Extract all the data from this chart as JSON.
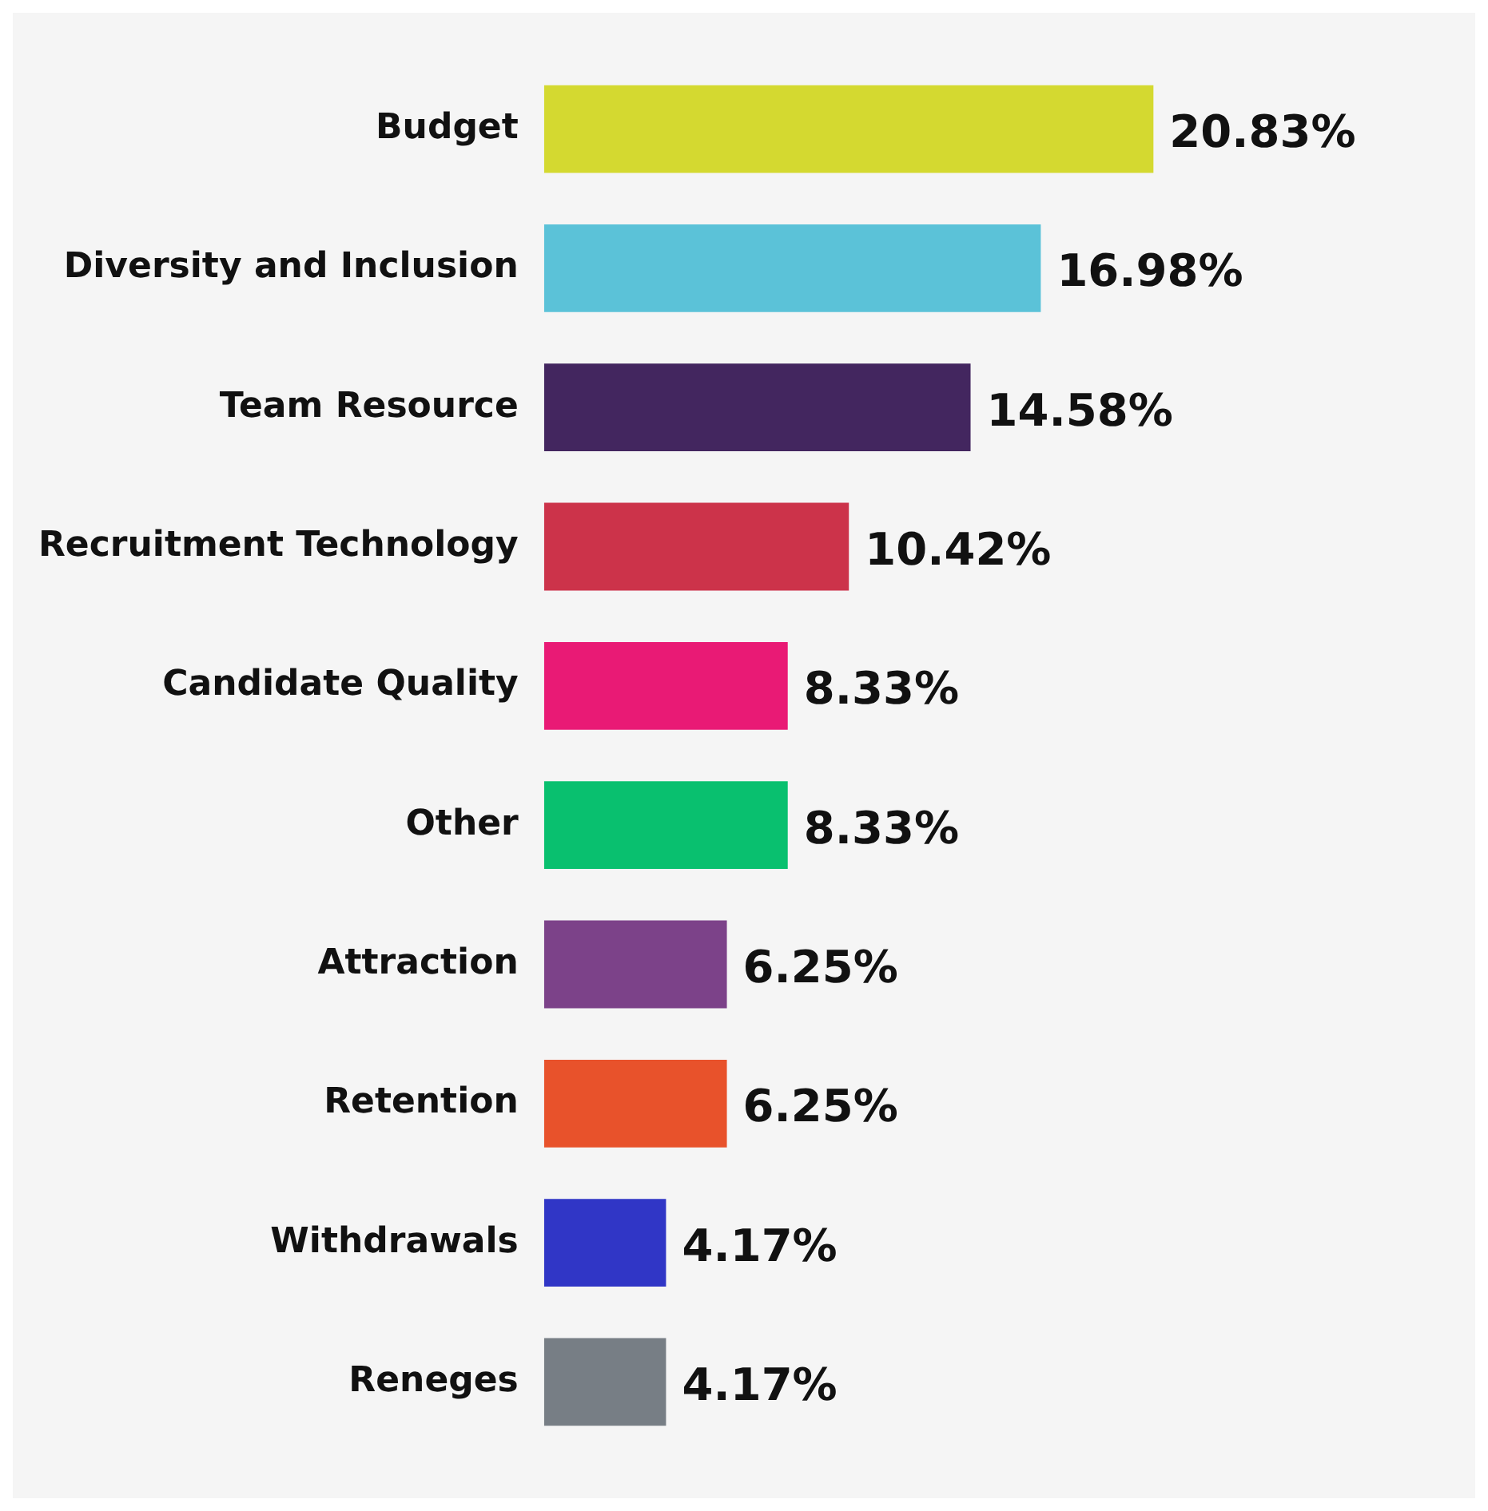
{
  "chart_data": {
    "type": "bar",
    "orientation": "horizontal",
    "categories": [
      "Budget",
      "Diversity and Inclusion",
      "Team Resource",
      "Recruitment Technology",
      "Candidate Quality",
      "Other",
      "Attraction",
      "Retention",
      "Withdrawals",
      "Reneges"
    ],
    "values": [
      20.83,
      16.98,
      14.58,
      10.42,
      8.33,
      8.33,
      6.25,
      6.25,
      4.17,
      4.17
    ],
    "colors": [
      "#d4d930",
      "#5bc2d8",
      "#43265f",
      "#cc334a",
      "#e91a75",
      "#09c06f",
      "#7c4289",
      "#e8522b",
      "#3036c6",
      "#777e85"
    ],
    "value_labels": [
      "20.83%",
      "16.98%",
      "14.58%",
      "10.42%",
      "8.33%",
      "8.33%",
      "6.25%",
      "6.25%",
      "4.17%",
      "4.17%"
    ],
    "legend": false
  }
}
